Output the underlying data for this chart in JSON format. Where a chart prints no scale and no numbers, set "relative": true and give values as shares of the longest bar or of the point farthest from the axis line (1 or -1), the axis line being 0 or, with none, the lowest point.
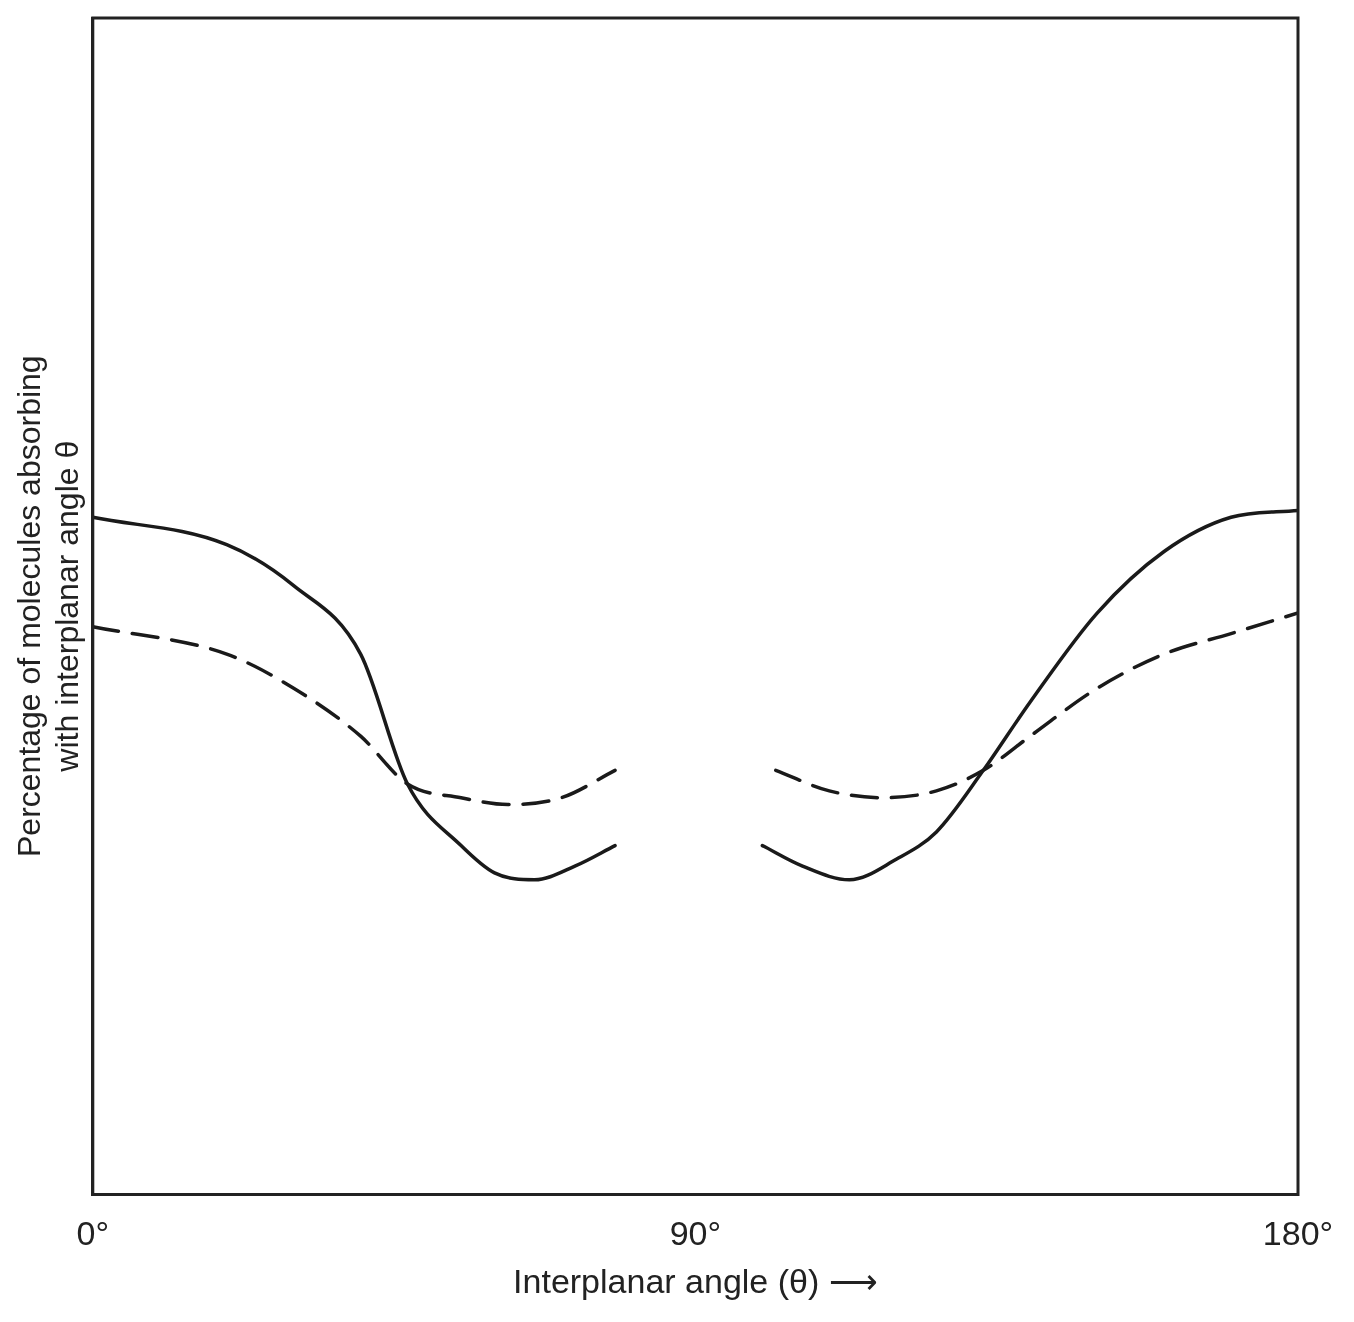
{
  "chart_data": {
    "type": "line",
    "xlabel": "Interplanar angle (θ) ⟶",
    "ylabel": "Percentage of molecules absorbing\nwith interplanar angle θ",
    "relative": true,
    "xlim": [
      0,
      180
    ],
    "xticks": [
      {
        "value": 0,
        "label": "0°"
      },
      {
        "value": 90,
        "label": "90°"
      },
      {
        "value": 180,
        "label": "180°"
      }
    ],
    "grid": false,
    "legend": false,
    "marker": "none",
    "series": [
      {
        "color": "#1a1a1a",
        "line_style": "solid",
        "x": [
          0,
          20,
          30,
          40,
          47,
          55,
          60,
          66,
          72,
          78,
          89,
          100,
          106,
          113,
          120,
          126,
          133,
          140,
          150,
          160,
          170,
          180
        ],
        "values": [
          0.99,
          0.95,
          0.89,
          0.79,
          0.6,
          0.51,
          0.47,
          0.46,
          0.48,
          0.51,
          null,
          0.51,
          0.48,
          0.46,
          0.49,
          0.53,
          0.62,
          0.72,
          0.85,
          0.94,
          0.99,
          1.0
        ]
      },
      {
        "color": "#1a1a1a",
        "line_style": "dashed",
        "x": [
          0,
          20,
          30,
          40,
          47,
          55,
          62,
          70,
          78,
          89,
          102,
          110,
          118,
          126,
          133,
          140,
          150,
          160,
          170,
          180
        ],
        "values": [
          0.83,
          0.79,
          0.74,
          0.67,
          0.6,
          0.58,
          0.57,
          0.58,
          0.62,
          null,
          0.62,
          0.59,
          0.58,
          0.59,
          0.62,
          0.67,
          0.74,
          0.79,
          0.82,
          0.85
        ]
      }
    ]
  }
}
